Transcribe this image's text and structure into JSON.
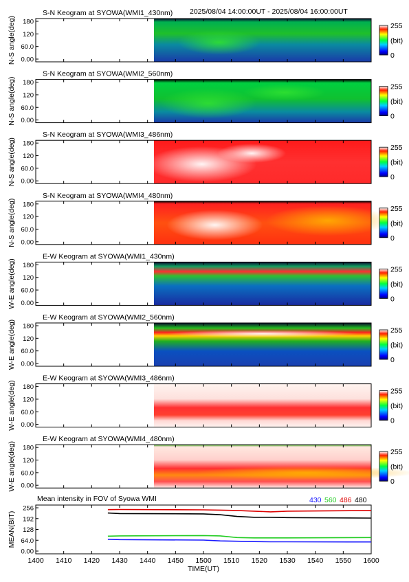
{
  "header_time_range": "2025/08/04 14:00:00UT - 2025/08/04 16:00:00UT",
  "colorbar": {
    "max_label": "255",
    "unit_label": "(bit)",
    "min_label": "0"
  },
  "x_axis": {
    "label": "TIME(UT)",
    "ticks": [
      "1400",
      "1410",
      "1420",
      "1430",
      "1440",
      "1450",
      "1500",
      "1510",
      "1520",
      "1530",
      "1540",
      "1550",
      "1600"
    ]
  },
  "keograms": [
    {
      "title": "S-N Keogram at SYOWA(WMI1_430nm)",
      "ylabel": "N-S angle(deg)",
      "yticks": [
        "180",
        "120",
        "60.0",
        "0.00"
      ],
      "colormap": "blue-green"
    },
    {
      "title": "S-N Keogram at SYOWA(WMI2_560nm)",
      "ylabel": "N-S angle(deg)",
      "yticks": [
        "180",
        "120",
        "60.0",
        "0.00"
      ],
      "colormap": "blue-green"
    },
    {
      "title": "S-N Keogram at SYOWA(WMI3_486nm)",
      "ylabel": "N-S angle(deg)",
      "yticks": [
        "180",
        "120",
        "60.0",
        "0.00"
      ],
      "colormap": "red-white"
    },
    {
      "title": "S-N Keogram at SYOWA(WMI4_480nm)",
      "ylabel": "N-S angle(deg)",
      "yticks": [
        "180",
        "120",
        "60.0",
        "0.00"
      ],
      "colormap": "red-white"
    },
    {
      "title": "E-W Keogram at SYOWA(WMI1_430nm)",
      "ylabel": "W-E angle(deg)",
      "yticks": [
        "180",
        "120",
        "60.0",
        "0.00"
      ],
      "colormap": "blue-green"
    },
    {
      "title": "E-W Keogram at SYOWA(WMI2_560nm)",
      "ylabel": "W-E angle(deg)",
      "yticks": [
        "180",
        "120",
        "60.0",
        "0.00"
      ],
      "colormap": "blue-green"
    },
    {
      "title": "E-W Keogram at SYOWA(WMI3_486nm)",
      "ylabel": "W-E angle(deg)",
      "yticks": [
        "180",
        "120",
        "60.0",
        "0.00"
      ],
      "colormap": "red-white"
    },
    {
      "title": "E-W Keogram at SYOWA(WMI4_480nm)",
      "ylabel": "W-E angle(deg)",
      "yticks": [
        "180",
        "120",
        "60.0",
        "0.00"
      ],
      "colormap": "red-white"
    }
  ],
  "chart_data": {
    "type": "line",
    "title": "Mean intensity in FOV of Syowa WMI",
    "xlabel": "TIME(UT)",
    "ylabel": "MEAN(BIT)",
    "xlim": [
      1400,
      1600
    ],
    "ylim": [
      0,
      256
    ],
    "yticks": [
      "256",
      "192",
      "128",
      "64.0",
      "0.00"
    ],
    "grid": false,
    "legend_position": "top-right",
    "x": [
      1443,
      1450,
      1500,
      1510,
      1520,
      1530,
      1540,
      1550,
      1600
    ],
    "series": [
      {
        "name": "430",
        "color": "#1a1aff",
        "values": [
          70,
          68,
          65,
          60,
          58,
          56,
          55,
          55,
          54
        ]
      },
      {
        "name": "560",
        "color": "#22cc22",
        "values": [
          88,
          90,
          92,
          90,
          80,
          78,
          78,
          78,
          80
        ]
      },
      {
        "name": "486",
        "color": "#dd0000",
        "values": [
          245,
          246,
          244,
          242,
          240,
          236,
          232,
          236,
          240
        ]
      },
      {
        "name": "480",
        "color": "#000000",
        "values": [
          225,
          222,
          220,
          215,
          205,
          200,
          200,
          198,
          195
        ]
      }
    ]
  }
}
